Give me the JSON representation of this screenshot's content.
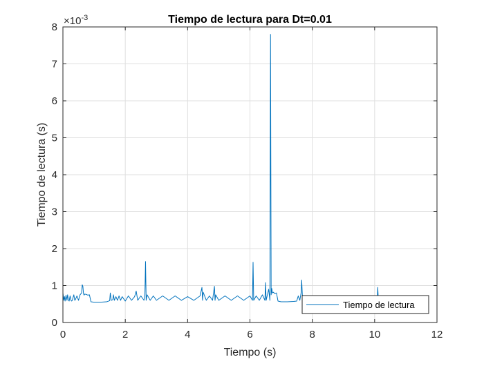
{
  "chart_data": {
    "type": "line",
    "title": "Tiempo de lectura para Dt=0.01",
    "xlabel": "Tiempo (s)",
    "ylabel": "Tiempo de lectura (s)",
    "exponent_base": "×10",
    "exponent_power": "-3",
    "xlim": [
      0,
      12
    ],
    "ylim": [
      0,
      8
    ],
    "xticks": [
      0,
      2,
      4,
      6,
      8,
      10,
      12
    ],
    "yticks": [
      0,
      1,
      2,
      3,
      4,
      5,
      6,
      7,
      8
    ],
    "grid": true,
    "legend_position": "bottom-right",
    "color": "#0072BD",
    "series": [
      {
        "name": "Tiempo de lectura",
        "x": [
          0,
          0.03,
          0.05,
          0.07,
          0.1,
          0.13,
          0.15,
          0.18,
          0.2,
          0.23,
          0.26,
          0.28,
          0.3,
          0.35,
          0.38,
          0.4,
          0.45,
          0.5,
          0.55,
          0.6,
          0.62,
          0.64,
          0.66,
          0.68,
          0.7,
          0.75,
          0.8,
          0.85,
          0.9,
          1.0,
          1.2,
          1.4,
          1.5,
          1.52,
          1.55,
          1.6,
          1.62,
          1.65,
          1.7,
          1.75,
          1.8,
          1.85,
          1.9,
          2.0,
          2.1,
          2.2,
          2.3,
          2.35,
          2.4,
          2.5,
          2.6,
          2.63,
          2.65,
          2.67,
          2.7,
          2.8,
          2.9,
          3.0,
          3.2,
          3.4,
          3.6,
          3.8,
          4.0,
          4.2,
          4.4,
          4.46,
          4.48,
          4.5,
          4.6,
          4.7,
          4.8,
          4.86,
          4.88,
          4.9,
          5.0,
          5.2,
          5.4,
          5.6,
          5.8,
          6.0,
          6.08,
          6.1,
          6.12,
          6.2,
          6.3,
          6.4,
          6.48,
          6.5,
          6.52,
          6.6,
          6.64,
          6.66,
          6.68,
          6.7,
          6.72,
          6.75,
          6.8,
          6.85,
          6.9,
          6.95,
          7.0,
          7.2,
          7.4,
          7.5,
          7.55,
          7.6,
          7.64,
          7.66,
          7.68,
          7.7,
          7.8,
          7.9,
          8.0,
          8.2,
          8.4,
          8.6,
          8.8,
          9.0,
          9.2,
          9.4,
          9.6,
          9.8,
          10.0,
          10.08,
          10.1,
          10.12,
          10.2,
          10.4,
          10.6
        ],
        "y": [
          0.8,
          0.6,
          0.7,
          0.58,
          0.74,
          0.6,
          0.75,
          0.6,
          0.58,
          0.72,
          0.6,
          0.58,
          0.6,
          0.75,
          0.6,
          0.62,
          0.72,
          0.6,
          0.75,
          0.8,
          1.02,
          0.98,
          0.78,
          0.74,
          0.77,
          0.76,
          0.74,
          0.75,
          0.56,
          0.55,
          0.55,
          0.56,
          0.59,
          0.8,
          0.6,
          0.62,
          0.75,
          0.6,
          0.7,
          0.6,
          0.72,
          0.6,
          0.7,
          0.58,
          0.72,
          0.6,
          0.7,
          0.85,
          0.6,
          0.72,
          0.6,
          0.75,
          1.65,
          0.6,
          0.75,
          0.6,
          0.72,
          0.6,
          0.72,
          0.6,
          0.72,
          0.6,
          0.7,
          0.6,
          0.72,
          0.95,
          0.6,
          0.82,
          0.6,
          0.72,
          0.6,
          0.98,
          0.6,
          0.75,
          0.6,
          0.72,
          0.6,
          0.72,
          0.6,
          0.72,
          0.6,
          1.63,
          0.6,
          0.72,
          0.6,
          0.75,
          0.6,
          1.08,
          0.6,
          0.9,
          0.6,
          7.8,
          0.75,
          0.92,
          0.8,
          0.82,
          0.78,
          0.8,
          0.58,
          0.57,
          0.56,
          0.56,
          0.57,
          0.58,
          0.72,
          0.6,
          0.8,
          1.15,
          0.75,
          0.72,
          0.7,
          0.72,
          0.7,
          0.72,
          0.7,
          0.72,
          0.7,
          0.72,
          0.7,
          0.72,
          0.7,
          0.72,
          0.7,
          0.6,
          0.95,
          0.6,
          0.58,
          0.57,
          0.57
        ]
      }
    ]
  }
}
